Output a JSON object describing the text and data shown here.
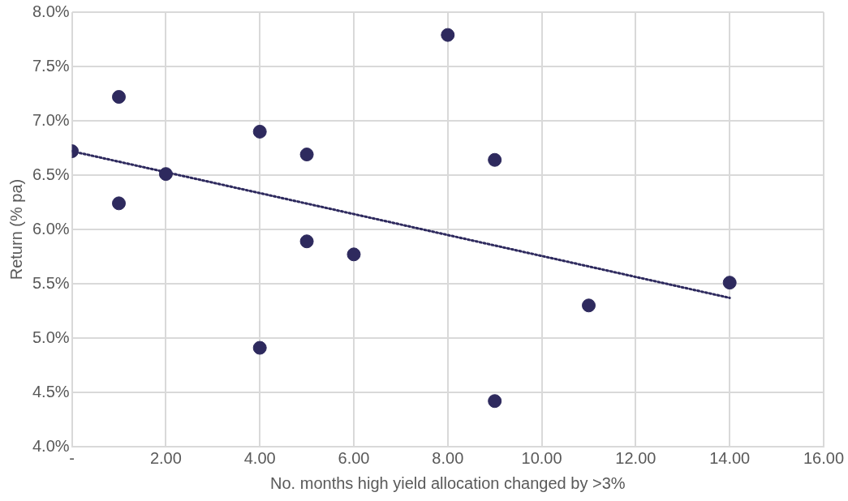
{
  "chart_data": {
    "type": "scatter",
    "xlabel": "No. months high yield allocation changed by >3%",
    "ylabel": "Return (% pa)",
    "xlim": [
      0,
      16
    ],
    "ylim": [
      4,
      8
    ],
    "xticks": [
      {
        "value": 0,
        "label": "-"
      },
      {
        "value": 2,
        "label": "2.00"
      },
      {
        "value": 4,
        "label": "4.00"
      },
      {
        "value": 6,
        "label": "6.00"
      },
      {
        "value": 8,
        "label": "8.00"
      },
      {
        "value": 10,
        "label": "10.00"
      },
      {
        "value": 12,
        "label": "12.00"
      },
      {
        "value": 14,
        "label": "14.00"
      },
      {
        "value": 16,
        "label": "16.00"
      }
    ],
    "yticks": [
      {
        "value": 4,
        "label": "4.0%"
      },
      {
        "value": 4.5,
        "label": "4.5%"
      },
      {
        "value": 5,
        "label": "5.0%"
      },
      {
        "value": 5.5,
        "label": "5.5%"
      },
      {
        "value": 6,
        "label": "6.0%"
      },
      {
        "value": 6.5,
        "label": "6.5%"
      },
      {
        "value": 7,
        "label": "7.0%"
      },
      {
        "value": 7.5,
        "label": "7.5%"
      },
      {
        "value": 8,
        "label": "8.0%"
      }
    ],
    "grid": true,
    "series": [
      {
        "type": "scatter",
        "marker": "circle",
        "color": "#2e2a5e",
        "x": [
          0,
          1,
          1,
          2,
          4,
          4,
          5,
          5,
          6,
          8,
          9,
          9,
          11,
          14
        ],
        "values": [
          6.72,
          7.22,
          6.24,
          6.51,
          6.9,
          4.91,
          6.69,
          5.89,
          5.77,
          7.79,
          6.64,
          4.42,
          5.3,
          5.51
        ]
      },
      {
        "type": "line",
        "marker": "none",
        "color": "#2e2a5e",
        "line_style": "dotted",
        "x": [
          0,
          14
        ],
        "values": [
          6.72,
          5.37
        ]
      }
    ]
  }
}
